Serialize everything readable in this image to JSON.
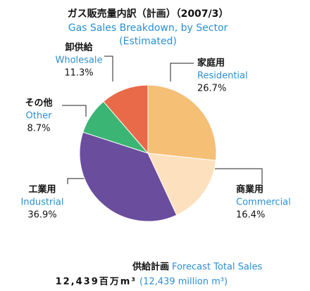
{
  "chart_data": {
    "type": "pie",
    "title": "ガス販売量内訳（計画）（2007/3）",
    "subtitle": [
      "Gas Sales Breakdown, by Sector",
      "(Estimated)"
    ],
    "categories_ja": [
      "家庭用",
      "商業用",
      "工業用",
      "その他",
      "卸供給"
    ],
    "categories": [
      "Residential",
      "Commercial",
      "Industrial",
      "Other",
      "Wholesale"
    ],
    "values": [
      26.7,
      16.4,
      36.9,
      8.7,
      11.3
    ],
    "value_labels": [
      "26.7%",
      "16.4%",
      "36.9%",
      "8.7%",
      "11.3%"
    ],
    "colors": [
      "#f6bf76",
      "#fde0bd",
      "#6b4d9e",
      "#3bb573",
      "#e86a48"
    ],
    "footer": {
      "label_ja": "供給計画",
      "label_en": "Forecast Total Sales",
      "total_ja": "12,439百万m³",
      "total_en": "(12,439 million m³)"
    }
  }
}
